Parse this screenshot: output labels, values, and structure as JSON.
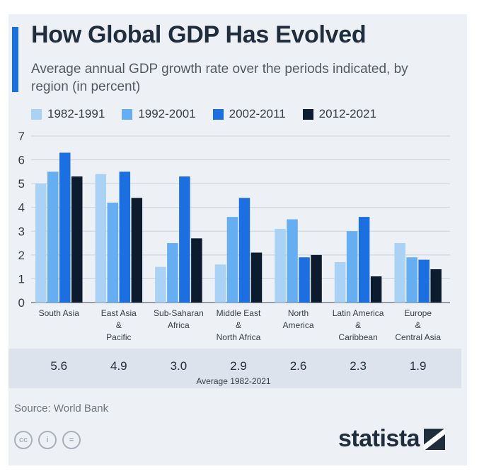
{
  "header": {
    "title": "How Global GDP Has Evolved",
    "subtitle": "Average annual GDP growth rate over the periods indicated, by region (in percent)"
  },
  "colors": {
    "accent": "#1a6fdc",
    "background": "#edf1f6",
    "avg_strip": "#dde3ec",
    "gridline": "#c9d1db",
    "text_dark": "#1f2d3d"
  },
  "chart_data": {
    "type": "bar",
    "title": "How Global GDP Has Evolved",
    "subtitle": "Average annual GDP growth rate over the periods indicated, by region (in percent)",
    "xlabel": "",
    "ylabel": "",
    "ylim": [
      0,
      7
    ],
    "yticks": [
      0,
      1,
      2,
      3,
      4,
      5,
      6,
      7
    ],
    "grid": true,
    "legend_position": "top",
    "categories": [
      [
        "South Asia"
      ],
      [
        "East Asia",
        "&",
        "Pacific"
      ],
      [
        "Sub-Saharan",
        "Africa"
      ],
      [
        "Middle East",
        "&",
        "North Africa"
      ],
      [
        "North",
        "America"
      ],
      [
        "Latin America",
        "&",
        "Caribbean"
      ],
      [
        "Europe",
        "&",
        "Central Asia"
      ]
    ],
    "series": [
      {
        "name": "1982-1991",
        "color": "#a9d2f5",
        "values": [
          5.0,
          5.4,
          1.5,
          1.6,
          3.1,
          1.7,
          2.5
        ]
      },
      {
        "name": "1992-2001",
        "color": "#66aef2",
        "values": [
          5.5,
          4.2,
          2.5,
          3.6,
          3.5,
          3.0,
          1.9
        ]
      },
      {
        "name": "2002-2011",
        "color": "#1c6fe0",
        "values": [
          6.3,
          5.5,
          5.3,
          4.4,
          1.9,
          3.6,
          1.8
        ]
      },
      {
        "name": "2012-2021",
        "color": "#0d1b2e",
        "values": [
          5.3,
          4.4,
          2.7,
          2.1,
          2.0,
          1.1,
          1.4
        ]
      }
    ],
    "averages": {
      "label": "Average 1982-2021",
      "values": [
        "5.6",
        "4.9",
        "3.0",
        "2.9",
        "2.6",
        "2.3",
        "1.9"
      ]
    }
  },
  "footer": {
    "source": "Source: World Bank",
    "brand": "statista",
    "license_icons": [
      "cc",
      "i",
      "="
    ]
  }
}
